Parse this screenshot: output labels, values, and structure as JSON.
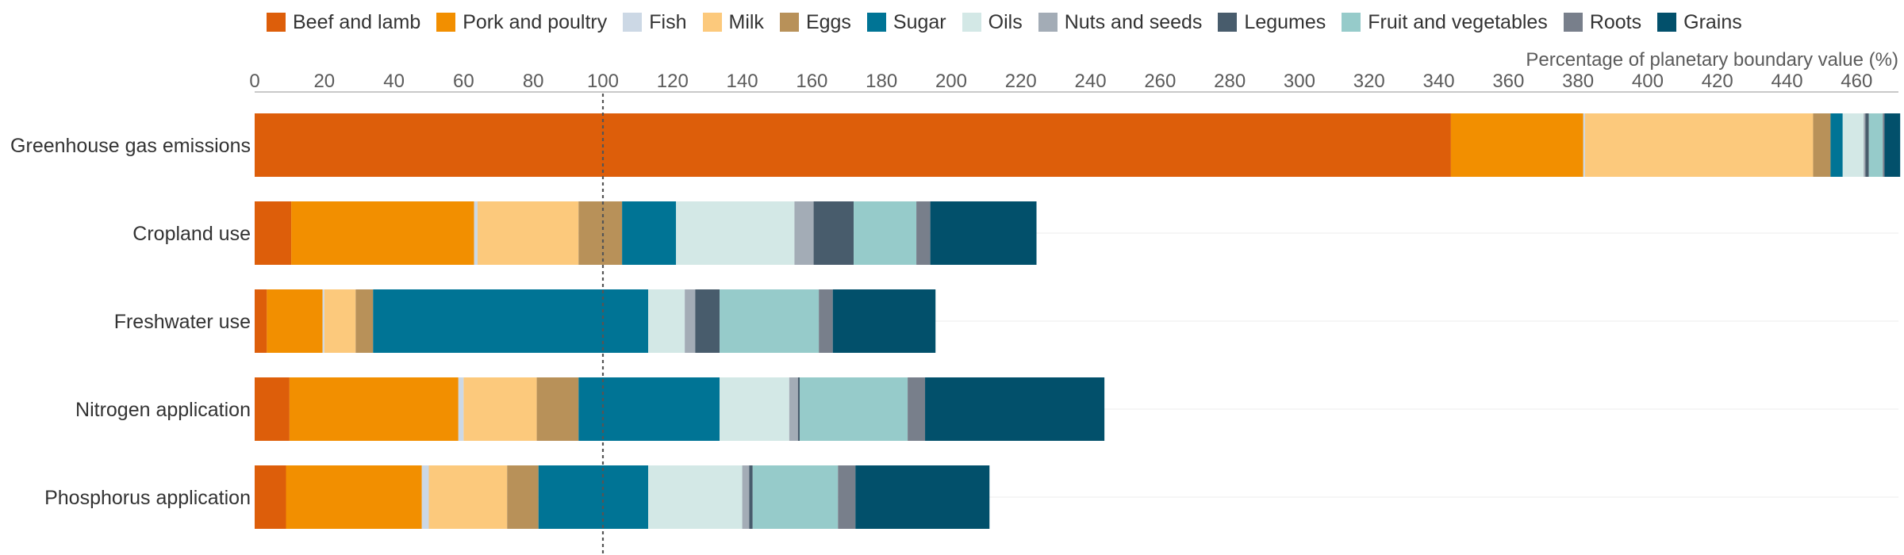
{
  "chart_data": {
    "type": "bar",
    "orientation": "horizontal",
    "stacked": true,
    "xlabel": "Percentage of planetary boundary value (%)",
    "xlim": [
      0,
      472
    ],
    "xticks": [
      0,
      20,
      40,
      60,
      80,
      100,
      120,
      140,
      160,
      180,
      200,
      220,
      240,
      260,
      280,
      300,
      320,
      340,
      360,
      380,
      400,
      420,
      440,
      460
    ],
    "reference_line": 100,
    "legend_position": "top",
    "categories": [
      "Greenhouse gas emissions",
      "Cropland use",
      "Freshwater use",
      "Nitrogen application",
      "Phosphorus application"
    ],
    "series": [
      {
        "name": "Beef and lamb",
        "color": "#dd5e0a",
        "values": [
          343.5,
          10.5,
          3.5,
          10,
          9
        ]
      },
      {
        "name": "Pork and poultry",
        "color": "#f28f00",
        "values": [
          38,
          52.5,
          16,
          48.5,
          39
        ]
      },
      {
        "name": "Fish",
        "color": "#ccd8e5",
        "values": [
          0.5,
          1,
          0.5,
          1.5,
          2
        ]
      },
      {
        "name": "Milk",
        "color": "#fcc97c",
        "values": [
          65.5,
          29,
          9,
          21,
          22.5
        ]
      },
      {
        "name": "Eggs",
        "color": "#b89159",
        "values": [
          5,
          12.5,
          5,
          12,
          9
        ]
      },
      {
        "name": "Sugar",
        "color": "#007495",
        "values": [
          3.5,
          15.5,
          79,
          40.5,
          31.5
        ]
      },
      {
        "name": "Oils",
        "color": "#d3e8e6",
        "values": [
          6,
          34,
          10.5,
          20,
          27
        ]
      },
      {
        "name": "Nuts and seeds",
        "color": "#a3acb6",
        "values": [
          0.5,
          5.5,
          3,
          2.5,
          2
        ]
      },
      {
        "name": "Legumes",
        "color": "#485c6c",
        "values": [
          1,
          11.5,
          7,
          0.5,
          1
        ]
      },
      {
        "name": "Fruit and vegetables",
        "color": "#96cbca",
        "values": [
          4,
          18,
          28.5,
          31,
          24.5
        ]
      },
      {
        "name": "Roots",
        "color": "#787f8b",
        "values": [
          0.5,
          4,
          4,
          5,
          5
        ]
      },
      {
        "name": "Grains",
        "color": "#02506b",
        "values": [
          4.5,
          30.5,
          29.5,
          51.5,
          38.5
        ]
      }
    ]
  }
}
